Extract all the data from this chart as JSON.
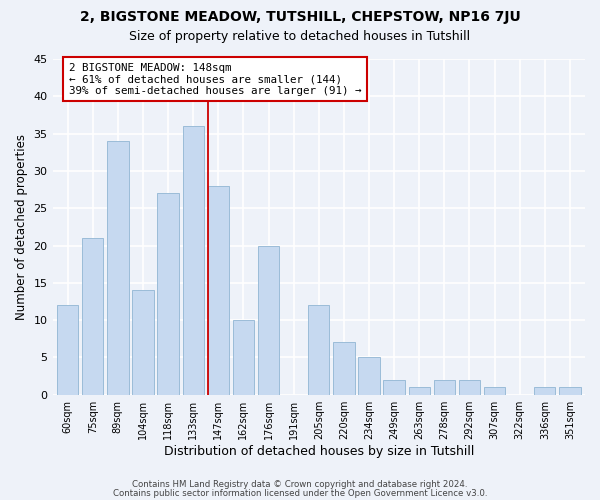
{
  "title1": "2, BIGSTONE MEADOW, TUTSHILL, CHEPSTOW, NP16 7JU",
  "title2": "Size of property relative to detached houses in Tutshill",
  "xlabel": "Distribution of detached houses by size in Tutshill",
  "ylabel": "Number of detached properties",
  "bar_labels": [
    "60sqm",
    "75sqm",
    "89sqm",
    "104sqm",
    "118sqm",
    "133sqm",
    "147sqm",
    "162sqm",
    "176sqm",
    "191sqm",
    "205sqm",
    "220sqm",
    "234sqm",
    "249sqm",
    "263sqm",
    "278sqm",
    "292sqm",
    "307sqm",
    "322sqm",
    "336sqm",
    "351sqm"
  ],
  "bar_values": [
    12,
    21,
    34,
    14,
    27,
    36,
    28,
    10,
    20,
    0,
    12,
    7,
    5,
    2,
    1,
    2,
    2,
    1,
    0,
    1,
    1
  ],
  "bar_color": "#c6d9f0",
  "bar_edge_color": "#9bbcd8",
  "highlight_line_color": "#cc0000",
  "ylim": [
    0,
    45
  ],
  "annotation_title": "2 BIGSTONE MEADOW: 148sqm",
  "annotation_line1": "← 61% of detached houses are smaller (144)",
  "annotation_line2": "39% of semi-detached houses are larger (91) →",
  "annotation_box_color": "#ffffff",
  "annotation_box_edge": "#cc0000",
  "footer1": "Contains HM Land Registry data © Crown copyright and database right 2024.",
  "footer2": "Contains public sector information licensed under the Open Government Licence v3.0.",
  "background_color": "#eef2f9",
  "grid_color": "#ffffff",
  "title1_fontsize": 10,
  "title2_fontsize": 9
}
